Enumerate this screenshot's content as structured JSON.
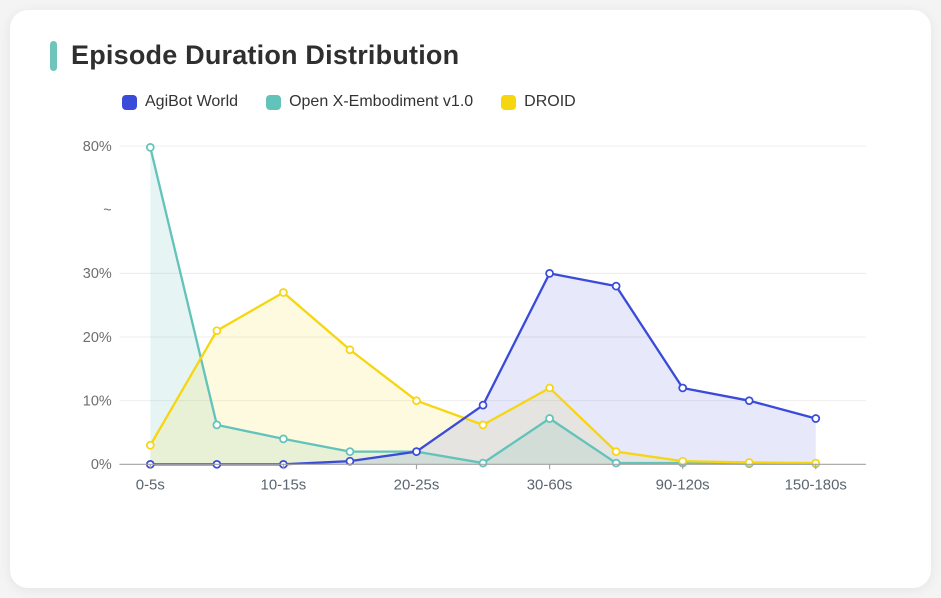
{
  "chart_data": {
    "type": "line",
    "title": "Episode Duration Distribution",
    "categories": [
      "0-5s",
      "",
      "10-15s",
      "",
      "20-25s",
      "",
      "30-60s",
      "",
      "90-120s",
      "",
      "150-180s"
    ],
    "series": [
      {
        "name": "AgiBot World",
        "color": "#3a4ad9",
        "fill": "rgba(82,100,228,0.14)",
        "values": [
          0,
          0,
          0,
          0.5,
          2,
          9.3,
          30,
          28,
          12,
          10,
          7.2
        ]
      },
      {
        "name": "Open X-Embodiment v1.0",
        "color": "#62c3ba",
        "fill": "rgba(98,195,186,0.16)",
        "values": [
          79.5,
          6.2,
          4,
          2,
          2,
          0.2,
          7.2,
          0.2,
          0.2,
          0.1,
          0.1
        ]
      },
      {
        "name": "DROID",
        "color": "#f6d511",
        "fill": "rgba(246,213,17,0.13)",
        "values": [
          3,
          21,
          27,
          18,
          10,
          6.2,
          12,
          2,
          0.5,
          0.3,
          0.2
        ]
      }
    ],
    "y_axis": {
      "ticks": [
        {
          "value": 0,
          "label": "0%"
        },
        {
          "value": 10,
          "label": "10%"
        },
        {
          "value": 20,
          "label": "20%"
        },
        {
          "value": 30,
          "label": "30%"
        },
        {
          "value": null,
          "label": "~"
        },
        {
          "value": 80,
          "label": "80%"
        }
      ],
      "break_after": 30,
      "max": 80
    },
    "xlabel": "",
    "ylabel": "",
    "grid": true,
    "legend_position": "top",
    "colors": {
      "gridline": "#ececec",
      "axis": "#a3a3a3",
      "y_label": "#6e6e6e",
      "x_label": "#5b6570",
      "accent": "#6fc4bb"
    }
  }
}
